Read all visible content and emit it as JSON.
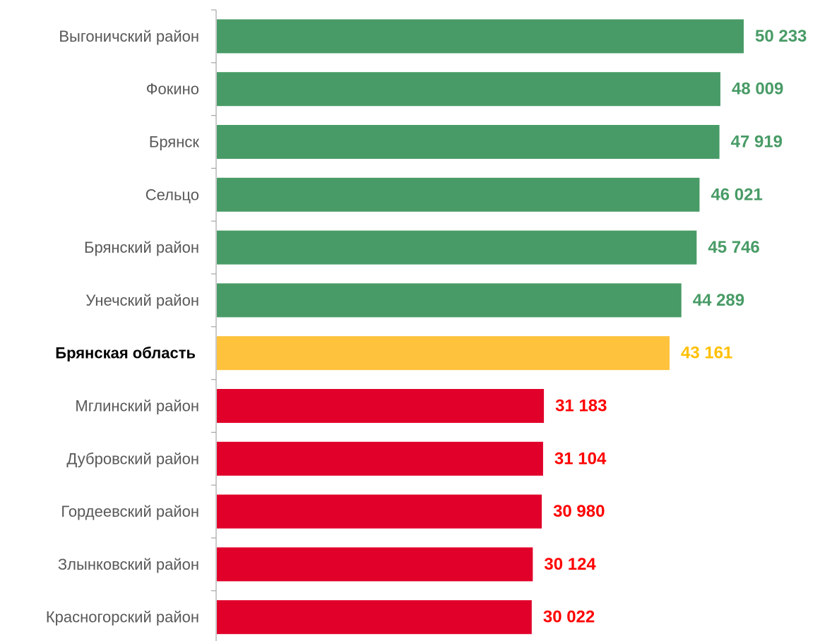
{
  "chart_data": {
    "type": "bar",
    "orientation": "horizontal",
    "title": "",
    "xlabel": "",
    "ylabel": "",
    "xlim": [
      0,
      50233
    ],
    "grid": false,
    "legend": "none",
    "categories": [
      "Выгоничский район",
      "Фокино",
      "Брянск",
      "Сельцо",
      "Брянский район",
      "Унечский район",
      "Брянская область",
      "Мглинский район",
      "Дубровский район",
      "Гордеевский район",
      "Злынковский район",
      "Красногорский район"
    ],
    "values": [
      50233,
      48009,
      47919,
      46021,
      45746,
      44289,
      43161,
      31183,
      31104,
      30980,
      30124,
      30022
    ],
    "value_labels": [
      "50 233",
      "48 009",
      "47 919",
      "46 021",
      "45 746",
      "44 289",
      "43 161",
      "31 183",
      "31 104",
      "30 980",
      "30 124",
      "30 022"
    ],
    "groups": [
      "above",
      "above",
      "above",
      "above",
      "above",
      "above",
      "average",
      "below",
      "below",
      "below",
      "below",
      "below"
    ],
    "highlight_category": "Брянская область",
    "colors": {
      "above_bar": "#489B66",
      "above_label": "#489B66",
      "average_bar": "#FFC23C",
      "average_label": "#FFC000",
      "below_bar": "#E1002A",
      "below_label": "#FF0000",
      "axis": "#A6A6A6"
    }
  }
}
